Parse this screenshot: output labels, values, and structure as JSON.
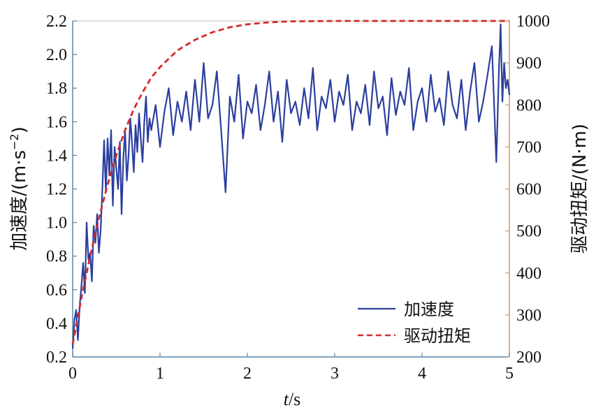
{
  "chart_data": {
    "type": "line",
    "xlabel_italic": "t",
    "xlabel_unit": "/s",
    "ylabel_left_text": "加速度/(m·s",
    "ylabel_left_sup": "−2",
    "ylabel_left_close": ")",
    "ylabel_right": "驱动扭矩/(N·m)",
    "xlim": [
      0,
      5
    ],
    "ylim_left": [
      0.2,
      2.2
    ],
    "ylim_right": [
      200,
      1000
    ],
    "x_ticks": [
      "0",
      "1",
      "2",
      "3",
      "4",
      "5"
    ],
    "y_left_ticks": [
      "0.2",
      "0.4",
      "0.6",
      "0.8",
      "1.0",
      "1.2",
      "1.4",
      "1.6",
      "1.8",
      "2.0",
      "2.2"
    ],
    "y_right_ticks": [
      "200",
      "300",
      "400",
      "500",
      "600",
      "700",
      "800",
      "900",
      "1000"
    ],
    "grid": false,
    "legend_position": "bottom-right",
    "series": [
      {
        "name": "加速度",
        "axis": "left",
        "style": "solid",
        "color": "#2b3f9e",
        "x": [
          0,
          0.02,
          0.04,
          0.06,
          0.08,
          0.1,
          0.12,
          0.14,
          0.16,
          0.18,
          0.2,
          0.22,
          0.24,
          0.26,
          0.28,
          0.3,
          0.32,
          0.34,
          0.36,
          0.38,
          0.4,
          0.42,
          0.44,
          0.46,
          0.48,
          0.5,
          0.52,
          0.54,
          0.56,
          0.58,
          0.6,
          0.62,
          0.64,
          0.66,
          0.68,
          0.7,
          0.72,
          0.74,
          0.76,
          0.78,
          0.8,
          0.82,
          0.84,
          0.86,
          0.88,
          0.9,
          0.95,
          1.0,
          1.05,
          1.1,
          1.15,
          1.2,
          1.25,
          1.3,
          1.35,
          1.4,
          1.45,
          1.5,
          1.55,
          1.6,
          1.65,
          1.7,
          1.75,
          1.8,
          1.85,
          1.9,
          1.95,
          2.0,
          2.05,
          2.1,
          2.15,
          2.2,
          2.25,
          2.3,
          2.35,
          2.4,
          2.45,
          2.5,
          2.55,
          2.6,
          2.65,
          2.7,
          2.75,
          2.8,
          2.85,
          2.9,
          2.95,
          3.0,
          3.05,
          3.1,
          3.15,
          3.2,
          3.25,
          3.3,
          3.35,
          3.4,
          3.45,
          3.5,
          3.55,
          3.6,
          3.65,
          3.7,
          3.75,
          3.8,
          3.85,
          3.9,
          3.95,
          4.0,
          4.05,
          4.1,
          4.15,
          4.2,
          4.25,
          4.3,
          4.35,
          4.4,
          4.45,
          4.5,
          4.55,
          4.6,
          4.65,
          4.7,
          4.75,
          4.8,
          4.85,
          4.88,
          4.9,
          4.92,
          4.94,
          4.96,
          4.98,
          5.0
        ],
        "y": [
          0.25,
          0.42,
          0.48,
          0.3,
          0.5,
          0.62,
          0.76,
          0.58,
          1.0,
          0.78,
          0.82,
          0.65,
          0.98,
          0.88,
          1.05,
          0.82,
          0.95,
          1.2,
          1.49,
          1.18,
          1.5,
          1.28,
          1.55,
          1.1,
          1.45,
          1.32,
          1.2,
          1.48,
          1.05,
          1.38,
          1.55,
          1.25,
          1.4,
          1.62,
          1.47,
          1.3,
          1.58,
          1.42,
          1.65,
          1.5,
          1.36,
          1.6,
          1.75,
          1.48,
          1.62,
          1.55,
          1.7,
          1.45,
          1.66,
          1.8,
          1.52,
          1.72,
          1.6,
          1.78,
          1.55,
          1.85,
          1.6,
          1.95,
          1.62,
          1.7,
          1.9,
          1.55,
          1.18,
          1.75,
          1.6,
          1.88,
          1.5,
          1.72,
          1.65,
          1.82,
          1.55,
          1.7,
          1.9,
          1.6,
          1.78,
          1.48,
          1.85,
          1.65,
          1.72,
          1.58,
          1.8,
          1.62,
          1.92,
          1.55,
          1.75,
          1.68,
          1.85,
          1.6,
          1.78,
          1.7,
          1.88,
          1.55,
          1.72,
          1.65,
          1.82,
          1.58,
          1.9,
          1.68,
          1.75,
          1.52,
          1.86,
          1.64,
          1.78,
          1.7,
          1.92,
          1.55,
          1.72,
          1.8,
          1.6,
          1.88,
          1.66,
          1.74,
          1.58,
          1.9,
          1.7,
          1.62,
          1.85,
          1.55,
          1.78,
          1.95,
          1.6,
          1.72,
          1.88,
          2.05,
          1.36,
          1.9,
          2.18,
          1.72,
          1.95,
          1.8,
          1.85,
          1.76
        ]
      },
      {
        "name": "驱动扭矩",
        "axis": "right",
        "style": "dashed",
        "color": "#d42a2a",
        "x": [
          0,
          0.1,
          0.2,
          0.3,
          0.4,
          0.5,
          0.6,
          0.7,
          0.8,
          0.9,
          1.0,
          1.2,
          1.4,
          1.6,
          1.8,
          2.0,
          2.2,
          2.5,
          3.0,
          3.5,
          4.0,
          4.5,
          5.0
        ],
        "y": [
          230,
          340,
          440,
          530,
          610,
          680,
          740,
          790,
          830,
          865,
          890,
          930,
          955,
          973,
          985,
          992,
          996,
          999,
          1000,
          1000,
          1000,
          1000,
          1000
        ]
      }
    ]
  }
}
